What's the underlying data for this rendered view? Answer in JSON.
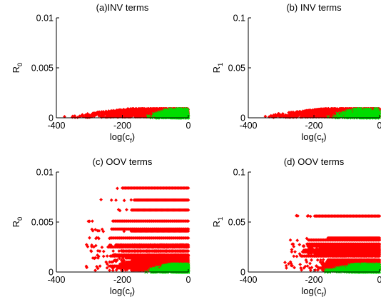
{
  "chart_data": [
    {
      "type": "scatter",
      "title": "(a)INV terms",
      "xlabel": "log(c_f)",
      "ylabel": "R_0",
      "xlim": [
        -400,
        0
      ],
      "ylim": [
        0,
        0.01
      ],
      "xticks": [
        "-400",
        "-200",
        "0"
      ],
      "yticks": [
        "0",
        "0.005",
        "0.01"
      ],
      "series": [
        {
          "color": "#ff0000",
          "marker": "diamond",
          "x_range": [
            -395,
            0
          ],
          "y_max": 0.0009,
          "y_levels": [
            0.0001,
            0.0002,
            0.0003,
            0.0004,
            0.0005,
            0.0006,
            0.0007,
            0.0008,
            0.0009
          ]
        },
        {
          "color": "#00dd00",
          "marker": "x",
          "x_range": [
            -130,
            0
          ],
          "y_max": 0.0009
        }
      ]
    },
    {
      "type": "scatter",
      "title": "(b) INV terms",
      "xlabel": "log(c_f)",
      "ylabel": "R_1",
      "xlim": [
        -400,
        0
      ],
      "ylim": [
        0,
        0.1
      ],
      "xticks": [
        "-400",
        "-200",
        "0"
      ],
      "yticks": [
        "0",
        "0.05",
        "0.1"
      ],
      "series": [
        {
          "color": "#ff0000",
          "marker": "diamond",
          "x_range": [
            -380,
            0
          ],
          "y_max": 0.009,
          "y_levels": [
            0.001,
            0.002,
            0.003,
            0.004,
            0.005,
            0.006,
            0.007,
            0.008,
            0.009
          ]
        },
        {
          "color": "#00dd00",
          "marker": "x",
          "x_range": [
            -160,
            0
          ],
          "y_max": 0.009
        }
      ]
    },
    {
      "type": "scatter",
      "title": "(c) OOV terms",
      "xlabel": "log(c_f)",
      "ylabel": "R_0",
      "xlim": [
        -400,
        0
      ],
      "ylim": [
        0,
        0.01
      ],
      "xticks": [
        "-400",
        "-200",
        "0"
      ],
      "yticks": [
        "0",
        "0.005",
        "0.01"
      ],
      "series": [
        {
          "color": "#ff0000",
          "marker": "diamond",
          "x_range": [
            -310,
            0
          ],
          "y_levels": [
            0.0002,
            0.0004,
            0.0006,
            0.0008,
            0.001,
            0.0012,
            0.0014,
            0.0016,
            0.0017,
            0.0021,
            0.0025,
            0.0027,
            0.0034,
            0.0041,
            0.0043,
            0.0051,
            0.0062,
            0.0072,
            0.0084
          ]
        },
        {
          "color": "#00dd00",
          "marker": "x",
          "x_range": [
            -130,
            0
          ],
          "y_max": 0.0008
        }
      ]
    },
    {
      "type": "scatter",
      "title": "(d) OOV terms",
      "xlabel": "log(c_f)",
      "ylabel": "R_1",
      "xlim": [
        -400,
        0
      ],
      "ylim": [
        0,
        0.1
      ],
      "xticks": [
        "-400",
        "-200",
        "0"
      ],
      "yticks": [
        "0",
        "0.05",
        "0.1"
      ],
      "series": [
        {
          "color": "#ff0000",
          "marker": "diamond",
          "x_range": [
            -290,
            0
          ],
          "y_levels": [
            0.002,
            0.004,
            0.006,
            0.008,
            0.01,
            0.012,
            0.016,
            0.018,
            0.02,
            0.022,
            0.024,
            0.026,
            0.028,
            0.032,
            0.034,
            0.056
          ]
        },
        {
          "color": "#00dd00",
          "marker": "x",
          "x_range": [
            -170,
            0
          ],
          "y_max": 0.008
        }
      ]
    }
  ]
}
